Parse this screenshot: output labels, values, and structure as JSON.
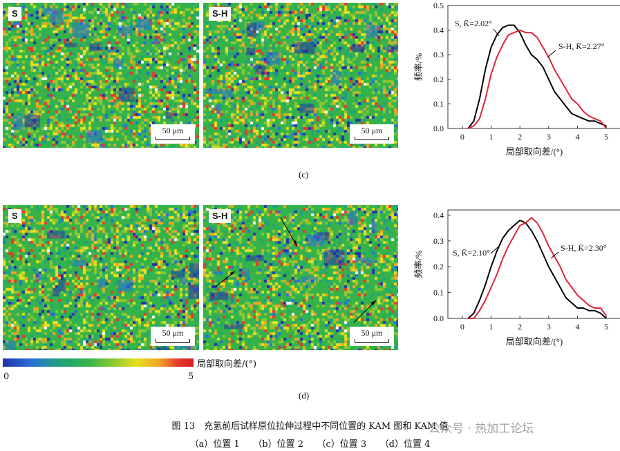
{
  "panels": {
    "c": {
      "tag": "(c)",
      "map_left": {
        "label": "S",
        "scale": "50 μm"
      },
      "map_right": {
        "label": "S-H",
        "scale": "50 μm"
      }
    },
    "d": {
      "tag": "(d)",
      "map_left": {
        "label": "S",
        "scale": "50 μm"
      },
      "map_right": {
        "label": "S-H",
        "scale": "50 μm"
      }
    }
  },
  "colorbar": {
    "title": "局部取向差/(°)",
    "min": "0",
    "max": "5",
    "colors": [
      "#2233aa",
      "#2a6fd6",
      "#1fa37a",
      "#35b34a",
      "#8bc832",
      "#e8e020",
      "#f3a526",
      "#e53a2e",
      "#d81c22"
    ]
  },
  "caption": {
    "title": "图 13　充氢前后试样原位拉伸过程中不同位置的 KAM 图和 KAM 值",
    "subcaption": "（a）位置 1　　（b）位置 2　　（c）位置 3　　（d）位置 4"
  },
  "watermark": "公众号 · 热加工论坛",
  "chart_data": [
    {
      "type": "line",
      "panel": "(c)",
      "xlabel": "局部取向差/(°)",
      "ylabel": "频率/%",
      "xlim": [
        -0.5,
        5.5
      ],
      "ylim": [
        0,
        0.5
      ],
      "xticks": [
        0,
        1,
        2,
        3,
        4,
        5
      ],
      "xtick_labels": [
        "0",
        "1",
        "2",
        "3",
        "4",
        "5"
      ],
      "yticks": [
        0,
        0.1,
        0.2,
        0.3,
        0.4,
        0.5
      ],
      "ytick_labels": [
        "0.0",
        "0.1",
        "0.2",
        "0.3",
        "0.4",
        "0.5"
      ],
      "series": [
        {
          "name": "S",
          "annotation": "S, K̄=2.02°",
          "color": "#000000",
          "x": [
            0.2,
            0.4,
            0.6,
            0.8,
            1.0,
            1.2,
            1.4,
            1.6,
            1.8,
            2.0,
            2.2,
            2.4,
            2.6,
            2.8,
            3.0,
            3.2,
            3.4,
            3.6,
            3.8,
            4.0,
            4.2,
            4.4,
            4.6,
            4.8,
            5.0
          ],
          "values": [
            0.0,
            0.03,
            0.12,
            0.24,
            0.33,
            0.38,
            0.41,
            0.42,
            0.42,
            0.39,
            0.34,
            0.3,
            0.28,
            0.25,
            0.2,
            0.15,
            0.12,
            0.09,
            0.06,
            0.05,
            0.04,
            0.03,
            0.03,
            0.02,
            0.01
          ]
        },
        {
          "name": "S-H",
          "annotation": "S-H, K̄=2.27°",
          "color": "#e0243a",
          "x": [
            0.2,
            0.4,
            0.6,
            0.8,
            1.0,
            1.2,
            1.4,
            1.6,
            1.8,
            2.0,
            2.2,
            2.4,
            2.6,
            2.8,
            3.0,
            3.2,
            3.4,
            3.6,
            3.8,
            4.0,
            4.2,
            4.4,
            4.6,
            4.8,
            5.0
          ],
          "values": [
            0.0,
            0.01,
            0.04,
            0.12,
            0.22,
            0.29,
            0.34,
            0.38,
            0.39,
            0.4,
            0.39,
            0.39,
            0.37,
            0.33,
            0.29,
            0.24,
            0.2,
            0.16,
            0.12,
            0.1,
            0.07,
            0.05,
            0.04,
            0.03,
            0.0
          ]
        }
      ]
    },
    {
      "type": "line",
      "panel": "(d)",
      "xlabel": "局部取向差/(°)",
      "ylabel": "频率/%",
      "xlim": [
        -0.5,
        5.5
      ],
      "ylim": [
        0,
        0.42
      ],
      "xticks": [
        0,
        1,
        2,
        3,
        4,
        5
      ],
      "xtick_labels": [
        "0",
        "1",
        "2",
        "3",
        "4",
        "5"
      ],
      "yticks": [
        0,
        0.1,
        0.2,
        0.3,
        0.4
      ],
      "ytick_labels": [
        "0.0",
        "0.1",
        "0.2",
        "0.3",
        "0.4"
      ],
      "series": [
        {
          "name": "S",
          "annotation": "S, K̄=2.10°",
          "color": "#000000",
          "x": [
            0.2,
            0.4,
            0.6,
            0.8,
            1.0,
            1.2,
            1.4,
            1.6,
            1.8,
            2.0,
            2.2,
            2.4,
            2.6,
            2.8,
            3.0,
            3.2,
            3.4,
            3.6,
            3.8,
            4.0,
            4.2,
            4.4,
            4.6,
            4.8,
            5.0
          ],
          "values": [
            0.0,
            0.02,
            0.07,
            0.13,
            0.2,
            0.26,
            0.31,
            0.34,
            0.36,
            0.38,
            0.37,
            0.34,
            0.3,
            0.25,
            0.2,
            0.16,
            0.12,
            0.08,
            0.06,
            0.04,
            0.04,
            0.03,
            0.03,
            0.02,
            0.0
          ]
        },
        {
          "name": "S-H",
          "annotation": "S-H, K̄=2.30°",
          "color": "#e0243a",
          "x": [
            0.2,
            0.4,
            0.6,
            0.8,
            1.0,
            1.2,
            1.4,
            1.6,
            1.8,
            2.0,
            2.2,
            2.4,
            2.6,
            2.8,
            3.0,
            3.2,
            3.4,
            3.6,
            3.8,
            4.0,
            4.2,
            4.4,
            4.6,
            4.8,
            5.0
          ],
          "values": [
            0.0,
            0.0,
            0.03,
            0.07,
            0.12,
            0.17,
            0.23,
            0.28,
            0.32,
            0.36,
            0.37,
            0.39,
            0.37,
            0.33,
            0.28,
            0.24,
            0.2,
            0.15,
            0.12,
            0.09,
            0.07,
            0.05,
            0.04,
            0.04,
            0.01
          ]
        }
      ]
    }
  ]
}
